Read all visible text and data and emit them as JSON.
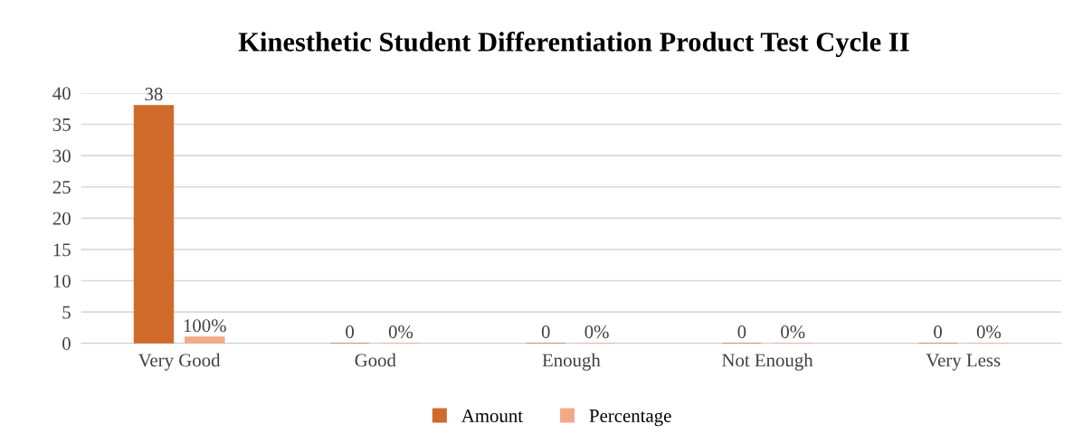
{
  "chart_data": {
    "type": "bar",
    "title": "Kinesthetic Student Differentiation Product Test Cycle II",
    "categories": [
      "Very Good",
      "Good",
      "Enough",
      "Not Enough",
      "Very Less"
    ],
    "series": [
      {
        "name": "Amount",
        "color": "#d06a2a",
        "values": [
          38,
          0,
          0,
          0,
          0
        ],
        "value_labels": [
          "38",
          "0",
          "0",
          "0",
          "0"
        ]
      },
      {
        "name": "Percentage",
        "color": "#f2a98a",
        "values": [
          1,
          0,
          0,
          0,
          0
        ],
        "value_labels": [
          "100%",
          "0%",
          "0%",
          "0%",
          "0%"
        ]
      }
    ],
    "ylim": [
      0,
      40
    ],
    "yticks": [
      0,
      5,
      10,
      15,
      20,
      25,
      30,
      35,
      40
    ],
    "grid": "y",
    "legend": "bottom"
  }
}
